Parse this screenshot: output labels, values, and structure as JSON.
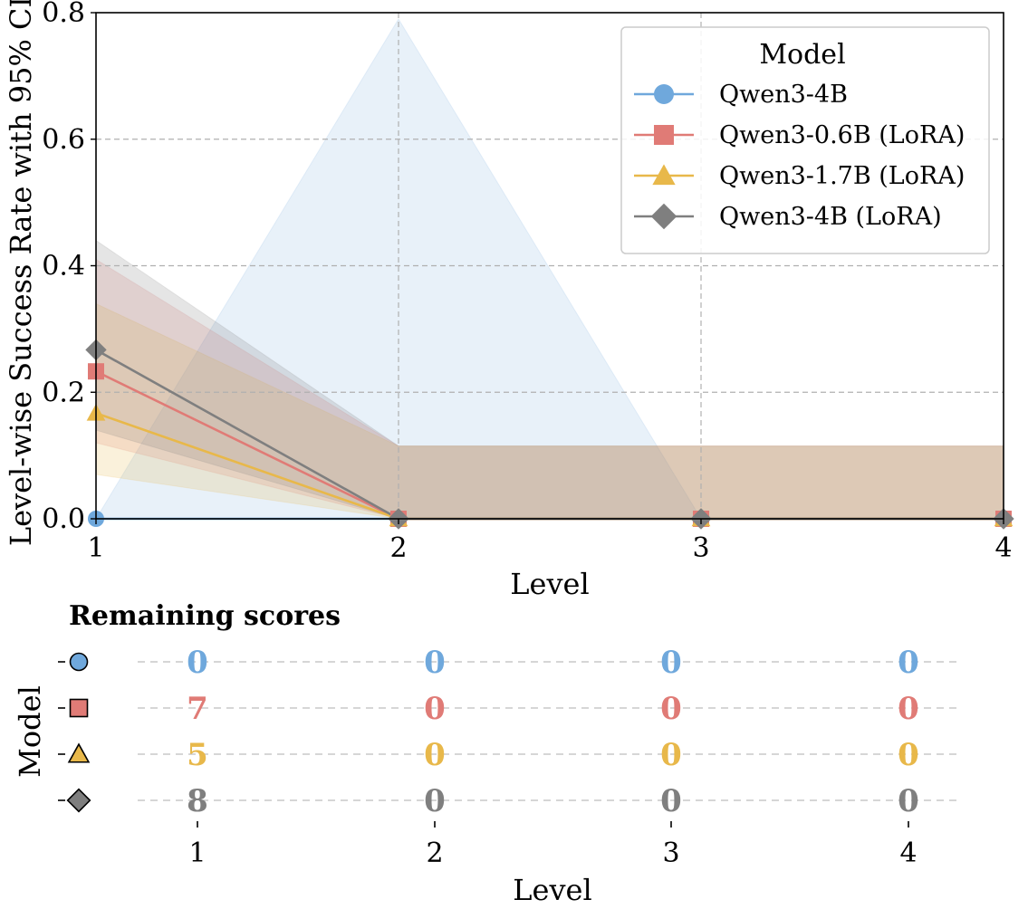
{
  "chart_data": [
    {
      "type": "line",
      "xlabel": "Level",
      "ylabel": "Level-wise Success Rate with 95% CI",
      "x": [
        1,
        2,
        3,
        4
      ],
      "xlim": [
        1,
        4
      ],
      "ylim": [
        0,
        0.8
      ],
      "x_ticks": [
        "1",
        "2",
        "3",
        "4"
      ],
      "y_ticks": [
        "0.0",
        "0.2",
        "0.4",
        "0.6",
        "0.8"
      ],
      "grid": true,
      "legend_title": "Model",
      "legend_position": "top-right",
      "series": [
        {
          "name": "Qwen3-4B",
          "marker": "circle",
          "color": "#6fa8dc",
          "values": [
            0.0,
            0.0,
            0.0,
            0.0
          ],
          "ci_lower": [
            0.0,
            0.0,
            0.0,
            0.0
          ],
          "ci_upper": [
            0.0,
            0.79,
            0.0,
            0.0
          ]
        },
        {
          "name": "Qwen3-0.6B (LoRA)",
          "marker": "square",
          "color": "#e07b76",
          "values": [
            0.233,
            0.0,
            0.0,
            0.0
          ],
          "ci_lower": [
            0.12,
            0.0,
            0.0,
            0.0
          ],
          "ci_upper": [
            0.41,
            0.115,
            0.115,
            0.115
          ]
        },
        {
          "name": "Qwen3-1.7B (LoRA)",
          "marker": "triangle",
          "color": "#e8b84a",
          "values": [
            0.167,
            0.0,
            0.0,
            0.0
          ],
          "ci_lower": [
            0.07,
            0.0,
            0.0,
            0.0
          ],
          "ci_upper": [
            0.34,
            0.115,
            0.115,
            0.115
          ]
        },
        {
          "name": "Qwen3-4B (LoRA)",
          "marker": "diamond",
          "color": "#7f7f7f",
          "values": [
            0.267,
            0.0,
            0.0,
            0.0
          ],
          "ci_lower": [
            0.14,
            0.0,
            0.0,
            0.0
          ],
          "ci_upper": [
            0.44,
            0.115,
            0.115,
            0.115
          ]
        }
      ]
    },
    {
      "type": "table",
      "title": "Remaining scores",
      "xlabel": "Level",
      "ylabel": "Model",
      "x_ticks": [
        "1",
        "2",
        "3",
        "4"
      ],
      "rows": [
        {
          "marker": "circle",
          "color": "#6fa8dc",
          "values": [
            "0",
            "0",
            "0",
            "0"
          ]
        },
        {
          "marker": "square",
          "color": "#e07b76",
          "values": [
            "7",
            "0",
            "0",
            "0"
          ]
        },
        {
          "marker": "triangle",
          "color": "#e8b84a",
          "values": [
            "5",
            "0",
            "0",
            "0"
          ]
        },
        {
          "marker": "diamond",
          "color": "#7f7f7f",
          "values": [
            "8",
            "0",
            "0",
            "0"
          ]
        }
      ]
    }
  ]
}
